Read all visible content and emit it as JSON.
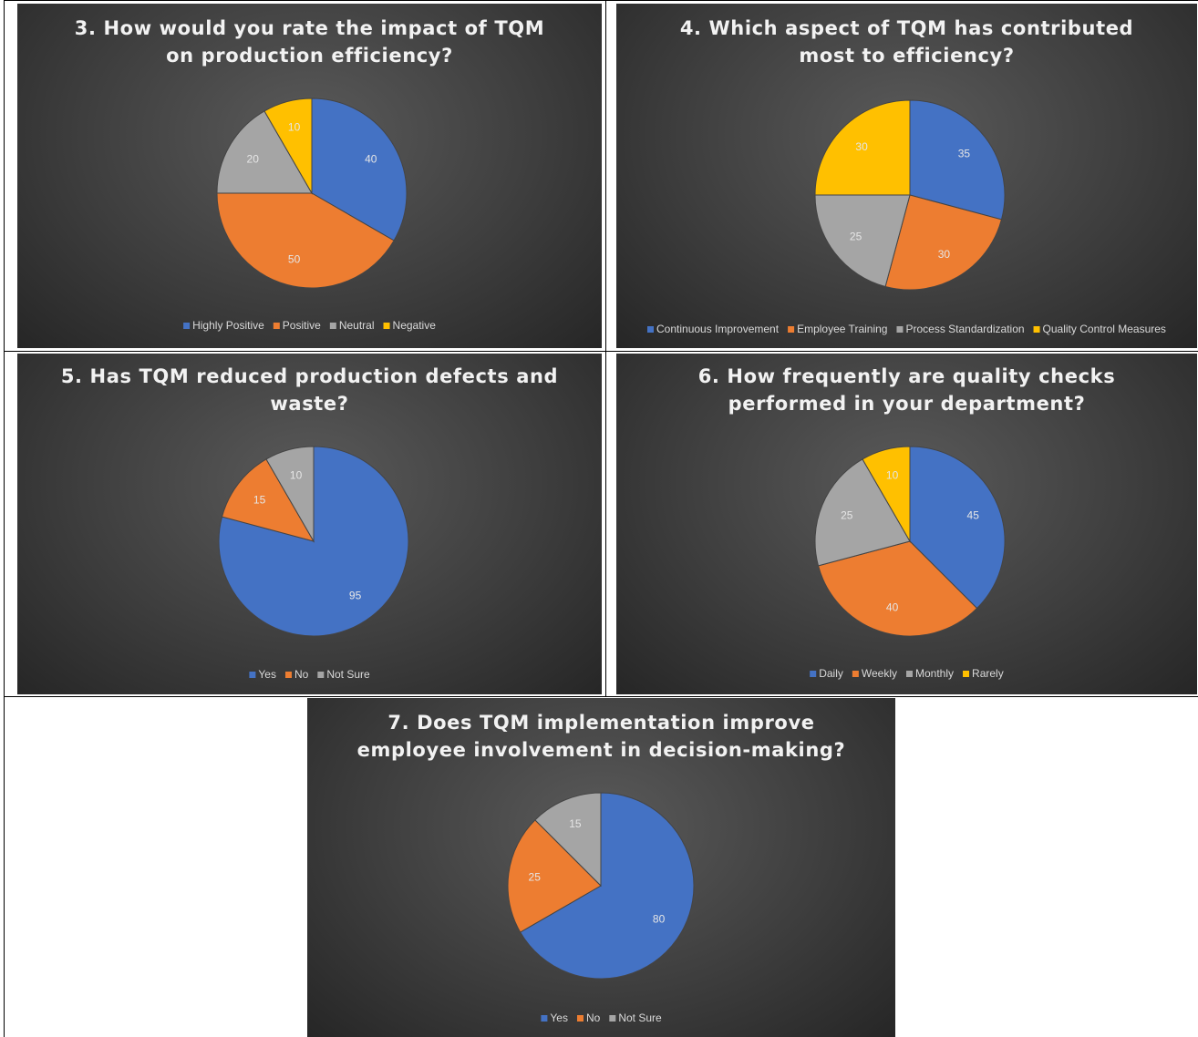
{
  "chart_data": [
    {
      "type": "pie",
      "title_lines": [
        "3. How would you rate the impact of TQM",
        "on production efficiency?"
      ],
      "categories": [
        "Highly Positive",
        "Positive",
        "Neutral",
        "Negative"
      ],
      "values": [
        40,
        50,
        20,
        10
      ],
      "colors": [
        "#4472C4",
        "#ED7D31",
        "#A5A5A5",
        "#FFC000"
      ],
      "legend": "bottom"
    },
    {
      "type": "pie",
      "title_lines": [
        "4. Which aspect of TQM has contributed",
        "most to efficiency?"
      ],
      "categories": [
        "Continuous Improvement",
        "Employee Training",
        "Process Standardization",
        "Quality Control Measures"
      ],
      "values": [
        35,
        30,
        25,
        30
      ],
      "colors": [
        "#4472C4",
        "#ED7D31",
        "#A5A5A5",
        "#FFC000"
      ],
      "legend": "bottom"
    },
    {
      "type": "pie",
      "title_lines": [
        "5. Has TQM reduced production defects and",
        "waste?"
      ],
      "categories": [
        "Yes",
        "No",
        "Not Sure"
      ],
      "values": [
        95,
        15,
        10
      ],
      "colors": [
        "#4472C4",
        "#ED7D31",
        "#A5A5A5"
      ],
      "legend": "bottom"
    },
    {
      "type": "pie",
      "title_lines": [
        "6. How frequently are quality checks",
        "performed in your department?"
      ],
      "categories": [
        "Daily",
        "Weekly",
        "Monthly",
        "Rarely"
      ],
      "values": [
        45,
        40,
        25,
        10
      ],
      "colors": [
        "#4472C4",
        "#ED7D31",
        "#A5A5A5",
        "#FFC000"
      ],
      "legend": "bottom"
    },
    {
      "type": "pie",
      "title_lines": [
        "7. Does TQM implementation improve",
        "employee involvement in decision-making?"
      ],
      "categories": [
        "Yes",
        "No",
        "Not Sure"
      ],
      "values": [
        80,
        25,
        15
      ],
      "colors": [
        "#4472C4",
        "#ED7D31",
        "#A5A5A5"
      ],
      "legend": "bottom"
    }
  ]
}
